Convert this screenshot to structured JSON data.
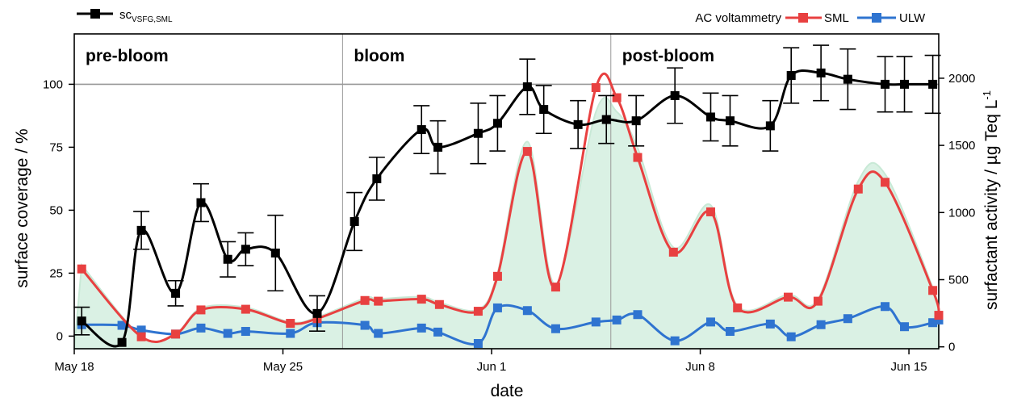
{
  "chart_data": {
    "type": "line",
    "xlabel": "date",
    "ylabel_left": "surface coverage / %",
    "ylabel_right": "surfactant activity / µg Teq L",
    "ylabel_right_sup": "-1",
    "x_ticks": [
      "May 18",
      "May 25",
      "Jun 1",
      "Jun 8",
      "Jun 15"
    ],
    "xlim": [
      0,
      29
    ],
    "ylim_left": [
      -5,
      120
    ],
    "y_ticks_left": [
      0,
      25,
      50,
      75,
      100
    ],
    "ylim_right": [
      -14,
      2330
    ],
    "y_ticks_right": [
      0,
      500,
      1000,
      1500,
      2000
    ],
    "reference_line_left": 100,
    "phases": [
      {
        "label": "pre-bloom",
        "start": 0,
        "end": 9
      },
      {
        "label": "bloom",
        "start": 9,
        "end": 18
      },
      {
        "label": "post-bloom",
        "start": 18,
        "end": 29
      }
    ],
    "legend": {
      "sc_prefix": "sc",
      "sc_subscript": "VSFG,SML",
      "ac_title": "AC voltammetry",
      "sml": "SML",
      "ulw": "ULW"
    },
    "colors": {
      "sc": "#000000",
      "sml": "#e84040",
      "ulw": "#2f74d0",
      "fill": "#d4efe0",
      "fill_edge": "#bfe6cf",
      "ref": "#999999"
    },
    "series": [
      {
        "name": "sc",
        "axis": "left",
        "x": [
          0.25,
          1.6,
          2.25,
          3.4,
          4.25,
          5.15,
          5.75,
          6.75,
          8.15,
          9.4,
          10.15,
          11.65,
          12.2,
          13.55,
          14.2,
          15.2,
          15.75,
          16.9,
          17.85,
          18.85,
          20.15,
          21.35,
          22.0,
          23.35,
          24.05,
          25.05,
          25.95,
          27.2,
          27.85,
          28.8
        ],
        "y": [
          6,
          -2.5,
          42,
          17,
          53,
          30.5,
          34.5,
          33,
          9,
          45.5,
          62.5,
          82,
          75,
          80.5,
          84.5,
          99,
          90,
          84,
          86,
          85.5,
          95.5,
          87,
          85.5,
          83.5,
          103.5,
          104.5,
          102,
          100,
          100,
          100
        ],
        "err": [
          5.5,
          0,
          7.5,
          5,
          7.5,
          7,
          6.5,
          15,
          7,
          11.5,
          8.5,
          9.5,
          10.5,
          12,
          11,
          11,
          9.5,
          9.5,
          9.5,
          10,
          11,
          9.5,
          10,
          10,
          11,
          11,
          12,
          11,
          11,
          11.5
        ]
      },
      {
        "name": "SML",
        "axis": "right",
        "x": [
          0.25,
          2.25,
          3.4,
          4.25,
          5.75,
          7.25,
          8.15,
          9.75,
          10.2,
          11.65,
          12.25,
          13.55,
          14.2,
          15.2,
          16.15,
          17.5,
          18.2,
          18.9,
          20.1,
          21.35,
          22.25,
          23.95,
          24.95,
          26.3,
          27.2,
          28.8,
          29.0
        ],
        "y": [
          580,
          75,
          95,
          275,
          280,
          175,
          210,
          345,
          340,
          355,
          315,
          265,
          525,
          1455,
          445,
          1930,
          1855,
          1410,
          705,
          1005,
          290,
          370,
          340,
          1175,
          1225,
          420,
          235
        ]
      },
      {
        "name": "ULW",
        "axis": "right",
        "x": [
          0.25,
          1.6,
          2.25,
          3.4,
          4.25,
          5.15,
          5.75,
          7.25,
          8.15,
          9.75,
          10.2,
          11.65,
          12.2,
          13.55,
          14.2,
          15.2,
          16.15,
          17.5,
          18.2,
          18.9,
          20.15,
          21.35,
          22.0,
          23.35,
          24.05,
          25.05,
          25.95,
          27.2,
          27.85,
          28.8,
          29.0
        ],
        "y": [
          165,
          160,
          125,
          95,
          140,
          100,
          115,
          100,
          180,
          160,
          100,
          140,
          110,
          25,
          290,
          270,
          135,
          185,
          200,
          240,
          45,
          185,
          115,
          170,
          75,
          165,
          210,
          300,
          150,
          180,
          200
        ]
      }
    ]
  }
}
